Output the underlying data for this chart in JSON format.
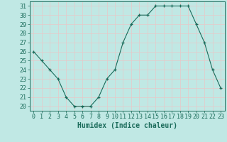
{
  "x": [
    0,
    1,
    2,
    3,
    4,
    5,
    6,
    7,
    8,
    9,
    10,
    11,
    12,
    13,
    14,
    15,
    16,
    17,
    18,
    19,
    20,
    21,
    22,
    23
  ],
  "y": [
    26,
    25,
    24,
    23,
    21,
    20,
    20,
    20,
    21,
    23,
    24,
    27,
    29,
    30,
    30,
    31,
    31,
    31,
    31,
    31,
    29,
    27,
    24,
    22
  ],
  "xlabel": "Humidex (Indice chaleur)",
  "ylim": [
    19.5,
    31.5
  ],
  "xlim": [
    -0.5,
    23.5
  ],
  "yticks": [
    20,
    21,
    22,
    23,
    24,
    25,
    26,
    27,
    28,
    29,
    30,
    31
  ],
  "xticks": [
    0,
    1,
    2,
    3,
    4,
    5,
    6,
    7,
    8,
    9,
    10,
    11,
    12,
    13,
    14,
    15,
    16,
    17,
    18,
    19,
    20,
    21,
    22,
    23
  ],
  "line_color": "#1a6b5a",
  "marker_color": "#1a6b5a",
  "bg_color": "#c0e8e4",
  "grid_color": "#e8c8c8",
  "tick_color": "#1a6b5a",
  "label_color": "#1a6b5a",
  "xlabel_fontsize": 7,
  "tick_fontsize": 6
}
